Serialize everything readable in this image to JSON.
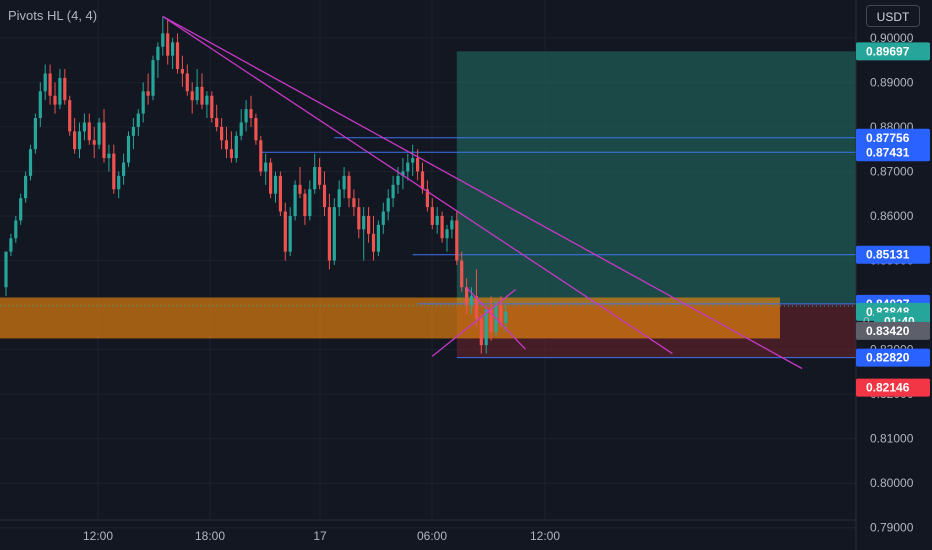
{
  "indicator_label": "Pivots HL (4, 4)",
  "currency_label": "USDT",
  "colors": {
    "background": "#131722",
    "grid": "#1e222d",
    "axis_text": "#b2b5be",
    "bull": "#26a69a",
    "bear": "#ef5350",
    "trend": "#c738c7",
    "hline": "#2962ff",
    "zone": "#f58a0b",
    "target": "#1f5b54",
    "stop": "#5b2128"
  },
  "chart_data": {
    "type": "candlestick",
    "symbol_quote": "USDT",
    "ylim": [
      0.785,
      0.9085
    ],
    "y_ticks": [
      "0.90000",
      "0.89000",
      "0.88000",
      "0.87000",
      "0.86000",
      "0.85000",
      "0.84000",
      "0.83000",
      "0.82000",
      "0.81000",
      "0.80000",
      "0.79000"
    ],
    "x_ticks": [
      "12:00",
      "18:00",
      "17",
      "06:00",
      "12:00"
    ],
    "price_labels": [
      {
        "label": "0.89697",
        "value": 0.89697,
        "kind": "target"
      },
      {
        "label": "0.87756",
        "value": 0.87756,
        "kind": "line"
      },
      {
        "label": "0.87431",
        "value": 0.87431,
        "kind": "line"
      },
      {
        "label": "0.85131",
        "value": 0.85131,
        "kind": "line"
      },
      {
        "label": "0.84027",
        "value": 0.84027,
        "kind": "line"
      },
      {
        "label": "0.83848",
        "value": 0.83848,
        "kind": "last"
      },
      {
        "label": "01:40",
        "value": 0.83635,
        "kind": "countdown"
      },
      {
        "label": "0.83420",
        "value": 0.8342,
        "kind": "gray"
      },
      {
        "label": "0.82820",
        "value": 0.8282,
        "kind": "line"
      },
      {
        "label": "0.82146",
        "value": 0.82146,
        "kind": "stop"
      }
    ],
    "countdown_prefix": "0",
    "horizontal_lines": [
      {
        "value": 0.87756,
        "from_bar": 67
      },
      {
        "value": 0.87431,
        "from_bar": 52
      },
      {
        "value": 0.85131,
        "from_bar": 83
      },
      {
        "value": 0.84027,
        "from_bar": 84
      },
      {
        "value": 0.8282,
        "from_bar": 92
      }
    ],
    "support_zone": {
      "from": 0.8325,
      "to": 0.8417
    },
    "position": {
      "entry": 0.8402,
      "target": 0.89697,
      "stop": 0.8282,
      "from_bar": 92
    },
    "trend_lines": [
      [
        [
          32,
          0.9048
        ],
        [
          133,
          0.8436
        ]
      ],
      [
        [
          32,
          0.9048
        ],
        [
          136,
          0.8291
        ]
      ],
      [
        [
          87,
          0.8285
        ],
        [
          104,
          0.8435
        ]
      ],
      [
        [
          94,
          0.8439
        ],
        [
          106,
          0.8301
        ]
      ]
    ],
    "candles": [
      [
        0.844,
        0.852,
        0.842,
        0.852
      ],
      [
        0.852,
        0.856,
        0.851,
        0.855
      ],
      [
        0.855,
        0.86,
        0.854,
        0.859
      ],
      [
        0.859,
        0.865,
        0.858,
        0.864
      ],
      [
        0.864,
        0.87,
        0.863,
        0.869
      ],
      [
        0.869,
        0.876,
        0.868,
        0.875
      ],
      [
        0.875,
        0.883,
        0.874,
        0.882
      ],
      [
        0.882,
        0.89,
        0.88,
        0.888
      ],
      [
        0.888,
        0.894,
        0.886,
        0.892
      ],
      [
        0.892,
        0.894,
        0.885,
        0.887
      ],
      [
        0.887,
        0.89,
        0.883,
        0.885
      ],
      [
        0.885,
        0.893,
        0.884,
        0.891
      ],
      [
        0.891,
        0.893,
        0.885,
        0.886
      ],
      [
        0.886,
        0.887,
        0.878,
        0.879
      ],
      [
        0.879,
        0.882,
        0.874,
        0.875
      ],
      [
        0.875,
        0.881,
        0.873,
        0.879
      ],
      [
        0.879,
        0.883,
        0.877,
        0.881
      ],
      [
        0.881,
        0.883,
        0.876,
        0.877
      ],
      [
        0.877,
        0.88,
        0.873,
        0.876
      ],
      [
        0.876,
        0.882,
        0.875,
        0.881
      ],
      [
        0.881,
        0.884,
        0.872,
        0.873
      ],
      [
        0.873,
        0.876,
        0.87,
        0.874
      ],
      [
        0.874,
        0.876,
        0.865,
        0.866
      ],
      [
        0.866,
        0.87,
        0.864,
        0.869
      ],
      [
        0.869,
        0.874,
        0.867,
        0.872
      ],
      [
        0.872,
        0.879,
        0.871,
        0.878
      ],
      [
        0.878,
        0.882,
        0.875,
        0.88
      ],
      [
        0.88,
        0.884,
        0.878,
        0.883
      ],
      [
        0.883,
        0.89,
        0.881,
        0.888
      ],
      [
        0.888,
        0.892,
        0.885,
        0.887
      ],
      [
        0.887,
        0.896,
        0.886,
        0.895
      ],
      [
        0.895,
        0.899,
        0.891,
        0.898
      ],
      [
        0.898,
        0.9048,
        0.896,
        0.901
      ],
      [
        0.901,
        0.904,
        0.894,
        0.896
      ],
      [
        0.896,
        0.9,
        0.893,
        0.899
      ],
      [
        0.899,
        0.901,
        0.892,
        0.893
      ],
      [
        0.893,
        0.896,
        0.889,
        0.892
      ],
      [
        0.892,
        0.894,
        0.887,
        0.888
      ],
      [
        0.888,
        0.89,
        0.883,
        0.886
      ],
      [
        0.886,
        0.893,
        0.885,
        0.889
      ],
      [
        0.889,
        0.892,
        0.884,
        0.885
      ],
      [
        0.885,
        0.888,
        0.882,
        0.887
      ],
      [
        0.887,
        0.888,
        0.881,
        0.882
      ],
      [
        0.882,
        0.885,
        0.879,
        0.88
      ],
      [
        0.88,
        0.882,
        0.875,
        0.877
      ],
      [
        0.877,
        0.88,
        0.873,
        0.875
      ],
      [
        0.875,
        0.879,
        0.872,
        0.873
      ],
      [
        0.873,
        0.879,
        0.872,
        0.878
      ],
      [
        0.878,
        0.884,
        0.877,
        0.881
      ],
      [
        0.881,
        0.886,
        0.879,
        0.884
      ],
      [
        0.884,
        0.887,
        0.88,
        0.882
      ],
      [
        0.882,
        0.883,
        0.876,
        0.877
      ],
      [
        0.877,
        0.878,
        0.869,
        0.87
      ],
      [
        0.87,
        0.874,
        0.867,
        0.872
      ],
      [
        0.872,
        0.873,
        0.864,
        0.865
      ],
      [
        0.865,
        0.87,
        0.863,
        0.869
      ],
      [
        0.869,
        0.87,
        0.86,
        0.861
      ],
      [
        0.861,
        0.863,
        0.85,
        0.852
      ],
      [
        0.852,
        0.862,
        0.851,
        0.86
      ],
      [
        0.86,
        0.868,
        0.859,
        0.867
      ],
      [
        0.867,
        0.871,
        0.864,
        0.865
      ],
      [
        0.865,
        0.866,
        0.858,
        0.86
      ],
      [
        0.86,
        0.868,
        0.859,
        0.866
      ],
      [
        0.866,
        0.874,
        0.865,
        0.871
      ],
      [
        0.871,
        0.873,
        0.866,
        0.867
      ],
      [
        0.867,
        0.87,
        0.86,
        0.862
      ],
      [
        0.862,
        0.865,
        0.848,
        0.85
      ],
      [
        0.85,
        0.864,
        0.849,
        0.862
      ],
      [
        0.862,
        0.868,
        0.86,
        0.866
      ],
      [
        0.866,
        0.871,
        0.864,
        0.869
      ],
      [
        0.869,
        0.87,
        0.862,
        0.864
      ],
      [
        0.864,
        0.866,
        0.86,
        0.862
      ],
      [
        0.862,
        0.864,
        0.855,
        0.857
      ],
      [
        0.857,
        0.862,
        0.85,
        0.86
      ],
      [
        0.86,
        0.862,
        0.854,
        0.856
      ],
      [
        0.856,
        0.86,
        0.85,
        0.852
      ],
      [
        0.852,
        0.859,
        0.851,
        0.858
      ],
      [
        0.858,
        0.863,
        0.856,
        0.861
      ],
      [
        0.861,
        0.866,
        0.859,
        0.864
      ],
      [
        0.864,
        0.869,
        0.862,
        0.867
      ],
      [
        0.867,
        0.871,
        0.865,
        0.869
      ],
      [
        0.869,
        0.873,
        0.866,
        0.87
      ],
      [
        0.87,
        0.874,
        0.868,
        0.872
      ],
      [
        0.872,
        0.876,
        0.869,
        0.873
      ],
      [
        0.873,
        0.875,
        0.868,
        0.87
      ],
      [
        0.87,
        0.872,
        0.865,
        0.866
      ],
      [
        0.866,
        0.868,
        0.861,
        0.862
      ],
      [
        0.862,
        0.864,
        0.857,
        0.858
      ],
      [
        0.858,
        0.862,
        0.856,
        0.86
      ],
      [
        0.86,
        0.861,
        0.854,
        0.855
      ],
      [
        0.855,
        0.858,
        0.852,
        0.857
      ],
      [
        0.857,
        0.86,
        0.855,
        0.859
      ],
      [
        0.859,
        0.861,
        0.849,
        0.85
      ],
      [
        0.85,
        0.852,
        0.843,
        0.844
      ],
      [
        0.844,
        0.846,
        0.838,
        0.84
      ],
      [
        0.84,
        0.844,
        0.838,
        0.842
      ],
      [
        0.842,
        0.848,
        0.835,
        0.837
      ],
      [
        0.837,
        0.838,
        0.8291,
        0.831
      ],
      [
        0.831,
        0.84,
        0.8291,
        0.839
      ],
      [
        0.839,
        0.842,
        0.832,
        0.834
      ],
      [
        0.834,
        0.841,
        0.833,
        0.84
      ],
      [
        0.84,
        0.842,
        0.835,
        0.836
      ],
      [
        0.836,
        0.84,
        0.834,
        0.8385
      ]
    ]
  }
}
